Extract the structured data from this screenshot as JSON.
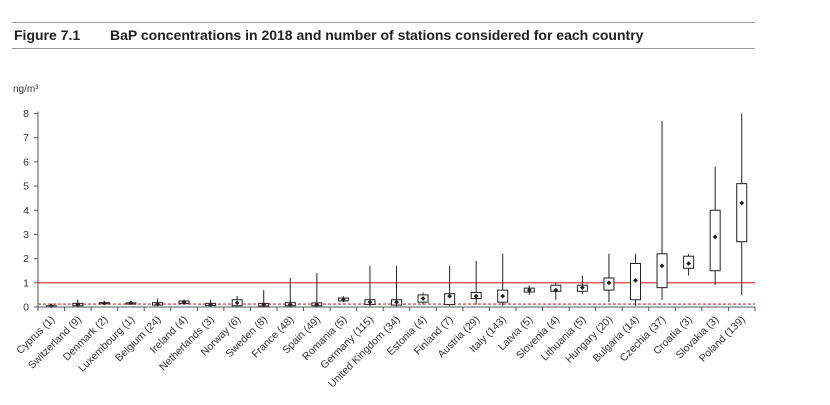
{
  "figure": {
    "number": "Figure 7.1",
    "title": "BaP concentrations in 2018 and number of stations considered for each country"
  },
  "chart_data": {
    "type": "boxplot",
    "ylabel": "ng/m³",
    "ylim": [
      0,
      8
    ],
    "yticks": [
      "0",
      "1",
      "2",
      "3",
      "4",
      "5",
      "6",
      "7",
      "8"
    ],
    "reference_lines": [
      {
        "value": 1,
        "style": "solid",
        "color": "#d22b2b"
      },
      {
        "value": 0.12,
        "style": "dashed",
        "color": "#d22b2b"
      }
    ],
    "box_color": "#222222",
    "median_marker": "diamond",
    "categories": [
      "Cyprus (1)",
      "Switzerland (9)",
      "Denmark (2)",
      "Luxembourg (1)",
      "Belgium (24)",
      "Ireland (4)",
      "Netherlands (3)",
      "Norway (6)",
      "Sweden (8)",
      "France (48)",
      "Spain (49)",
      "Romania (5)",
      "Germany (115)",
      "United Kingdom (34)",
      "Estonia (4)",
      "Finland (7)",
      "Austria (29)",
      "Italy (143)",
      "Latvia (5)",
      "Slovenia (4)",
      "Lithuania (5)",
      "Hungary (20)",
      "Bulgaria (14)",
      "Czechia (37)",
      "Croatia (3)",
      "Slovakia (3)",
      "Poland (139)"
    ],
    "series": [
      {
        "min": 0.05,
        "q1": 0.05,
        "median": 0.05,
        "q3": 0.05,
        "max": 0.05
      },
      {
        "min": 0.02,
        "q1": 0.05,
        "median": 0.1,
        "q3": 0.15,
        "max": 0.3
      },
      {
        "min": 0.12,
        "q1": 0.14,
        "median": 0.16,
        "q3": 0.18,
        "max": 0.22
      },
      {
        "min": 0.17,
        "q1": 0.17,
        "median": 0.17,
        "q3": 0.17,
        "max": 0.17
      },
      {
        "min": 0.04,
        "q1": 0.08,
        "median": 0.12,
        "q3": 0.18,
        "max": 0.35
      },
      {
        "min": 0.12,
        "q1": 0.15,
        "median": 0.2,
        "q3": 0.25,
        "max": 0.3
      },
      {
        "min": 0.03,
        "q1": 0.06,
        "median": 0.1,
        "q3": 0.15,
        "max": 0.3
      },
      {
        "min": 0.02,
        "q1": 0.05,
        "median": 0.17,
        "q3": 0.3,
        "max": 0.45
      },
      {
        "min": 0.02,
        "q1": 0.04,
        "median": 0.1,
        "q3": 0.15,
        "max": 0.7
      },
      {
        "min": 0.02,
        "q1": 0.05,
        "median": 0.1,
        "q3": 0.18,
        "max": 1.2
      },
      {
        "min": 0.02,
        "q1": 0.05,
        "median": 0.1,
        "q3": 0.17,
        "max": 1.4
      },
      {
        "min": 0.2,
        "q1": 0.25,
        "median": 0.3,
        "q3": 0.37,
        "max": 0.45
      },
      {
        "min": 0.03,
        "q1": 0.1,
        "median": 0.2,
        "q3": 0.3,
        "max": 1.7
      },
      {
        "min": 0.02,
        "q1": 0.08,
        "median": 0.2,
        "q3": 0.3,
        "max": 1.7
      },
      {
        "min": 0.1,
        "q1": 0.2,
        "median": 0.35,
        "q3": 0.5,
        "max": 0.6
      },
      {
        "min": 0.04,
        "q1": 0.1,
        "median": 0.45,
        "q3": 0.55,
        "max": 1.7
      },
      {
        "min": 0.1,
        "q1": 0.35,
        "median": 0.45,
        "q3": 0.6,
        "max": 1.9
      },
      {
        "min": 0.05,
        "q1": 0.2,
        "median": 0.45,
        "q3": 0.7,
        "max": 2.2
      },
      {
        "min": 0.5,
        "q1": 0.62,
        "median": 0.7,
        "q3": 0.78,
        "max": 0.9
      },
      {
        "min": 0.3,
        "q1": 0.65,
        "median": 0.7,
        "q3": 0.9,
        "max": 1.0
      },
      {
        "min": 0.55,
        "q1": 0.65,
        "median": 0.8,
        "q3": 0.9,
        "max": 1.3
      },
      {
        "min": 0.2,
        "q1": 0.7,
        "median": 1.0,
        "q3": 1.2,
        "max": 2.2
      },
      {
        "min": 0.05,
        "q1": 0.3,
        "median": 1.1,
        "q3": 1.8,
        "max": 2.2
      },
      {
        "min": 0.3,
        "q1": 0.8,
        "median": 1.7,
        "q3": 2.2,
        "max": 7.7
      },
      {
        "min": 1.3,
        "q1": 1.6,
        "median": 1.8,
        "q3": 2.1,
        "max": 2.2
      },
      {
        "min": 0.9,
        "q1": 1.5,
        "median": 2.9,
        "q3": 4.0,
        "max": 5.8
      },
      {
        "min": 0.5,
        "q1": 2.7,
        "median": 4.3,
        "q3": 5.1,
        "max": 8.0
      }
    ]
  }
}
